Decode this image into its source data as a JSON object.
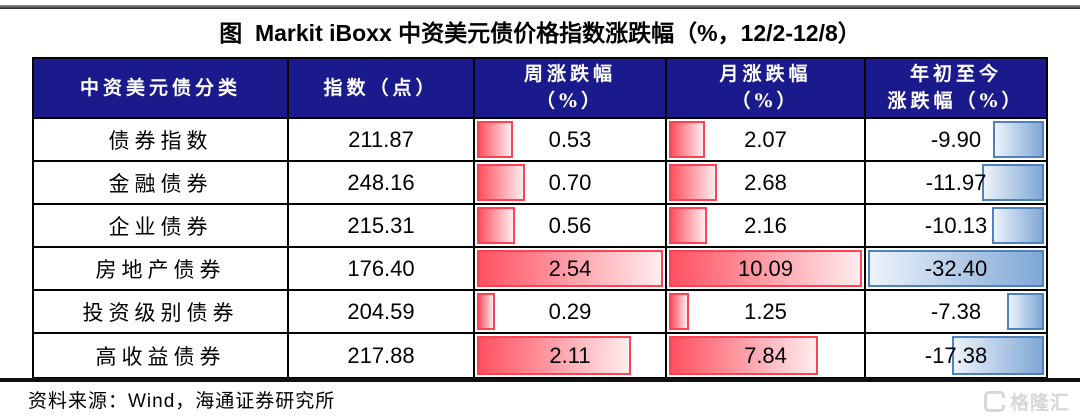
{
  "title": "图  Markit iBoxx 中资美元债价格指数涨跌幅（%，12/2-12/8）",
  "chart_data": {
    "type": "table",
    "title": "图 Markit iBoxx 中资美元债价格指数涨跌幅（%，12/2-12/8）",
    "columns": [
      "中资美元债分类",
      "指数（点）",
      "周涨跌幅（%）",
      "月涨跌幅（%）",
      "年初至今涨跌幅（%）"
    ],
    "display_headers": [
      "中资美元债分类",
      "指数（点）",
      "周涨跌幅\n（%）",
      "月涨跌幅\n（%）",
      "年初至今\n涨跌幅（%）"
    ],
    "rows": [
      [
        "债券指数",
        211.87,
        0.53,
        2.07,
        -9.9
      ],
      [
        "金融债券",
        248.16,
        0.7,
        2.68,
        -11.97
      ],
      [
        "企业债券",
        215.31,
        0.56,
        2.16,
        -10.13
      ],
      [
        "房地产债券",
        176.4,
        2.54,
        10.09,
        -32.4
      ],
      [
        "投资级别债券",
        204.59,
        0.29,
        1.25,
        -7.38
      ],
      [
        "高收益债券",
        217.88,
        2.11,
        7.84,
        -17.38
      ]
    ],
    "bar_style": "data bars scaled to column max; positive red from left, negative blue from right"
  },
  "source": "资料来源：Wind，海通证券研究所",
  "watermark": {
    "logo": "gelonghui-logo",
    "text": "格隆汇"
  },
  "colors": {
    "header_bg": "#1a1a8c",
    "positive_bar_border": "#ff4154",
    "negative_bar_border": "#4f81bd",
    "grid": "#000000"
  }
}
